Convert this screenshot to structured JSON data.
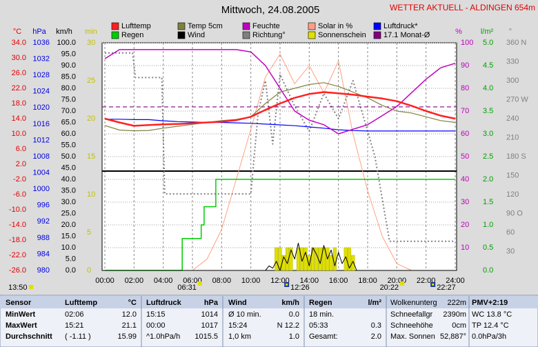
{
  "title": "Mittwoch, 24.08.2005",
  "station": "WETTER AKTUELL - ALDINGEN 654m",
  "current_time": "13:50",
  "sun": [
    "06:31",
    "20:22"
  ],
  "moon": [
    "12:26",
    "22:27"
  ],
  "chart_data": {
    "type": "line",
    "xlim": [
      0,
      24
    ],
    "xticks": [
      {
        "value": 0,
        "label": "00:00"
      },
      {
        "value": 2,
        "label": "02:00"
      },
      {
        "value": 4,
        "label": "04:00"
      },
      {
        "value": 6,
        "label": "06:00"
      },
      {
        "value": 8,
        "label": "08:00"
      },
      {
        "value": 10,
        "label": "10:00"
      },
      {
        "value": 12,
        "label": "12:00"
      },
      {
        "value": 14,
        "label": "14:00"
      },
      {
        "value": 16,
        "label": "16:00"
      },
      {
        "value": 18,
        "label": "18:00"
      },
      {
        "value": 20,
        "label": "20:00"
      },
      {
        "value": 22,
        "label": "22:00"
      },
      {
        "value": 24,
        "label": "24:00"
      }
    ],
    "grid": true,
    "axes": {
      "temp": {
        "label": "°C",
        "color": "#e00000",
        "ylim": [
          -26,
          34
        ],
        "yticks": [
          {
            "value": 34,
            "label": "34.0"
          },
          {
            "value": 30,
            "label": "30.0"
          },
          {
            "value": 26,
            "label": "26.0"
          },
          {
            "value": 22,
            "label": "22.0"
          },
          {
            "value": 18,
            "label": "18.0"
          },
          {
            "value": 14,
            "label": "14.0"
          },
          {
            "value": 10,
            "label": "10.0"
          },
          {
            "value": 6,
            "label": "6.0"
          },
          {
            "value": 2,
            "label": "2.0"
          },
          {
            "value": -2,
            "label": "-2.0"
          },
          {
            "value": -6,
            "label": "-6.0"
          },
          {
            "value": -10,
            "label": "-10.0"
          },
          {
            "value": -14,
            "label": "-14.0"
          },
          {
            "value": -18,
            "label": "-18.0"
          },
          {
            "value": -22,
            "label": "-22.0"
          },
          {
            "value": -26,
            "label": "-26.0"
          }
        ]
      },
      "pressure": {
        "label": "hPa",
        "color": "#0000e0",
        "ylim": [
          980,
          1036
        ],
        "yticks": [
          1036,
          1032,
          1028,
          1024,
          1020,
          1016,
          1012,
          1008,
          1004,
          1000,
          996,
          992,
          988,
          984,
          980
        ]
      },
      "speed": {
        "label": "km/h",
        "color": "#000000",
        "ylim": [
          0,
          100
        ],
        "yticks": [
          {
            "value": 100,
            "label": "100.0"
          },
          {
            "value": 95,
            "label": "95.0"
          },
          {
            "value": 90,
            "label": "90.0"
          },
          {
            "value": 85,
            "label": "85.0"
          },
          {
            "value": 80,
            "label": "80.0"
          },
          {
            "value": 75,
            "label": "75.0"
          },
          {
            "value": 70,
            "label": "70.0"
          },
          {
            "value": 65,
            "label": "65.0"
          },
          {
            "value": 60,
            "label": "60.0"
          },
          {
            "value": 55,
            "label": "55.0"
          },
          {
            "value": 50,
            "label": "50.0"
          },
          {
            "value": 45,
            "label": "45.0"
          },
          {
            "value": 40,
            "label": "40.0"
          },
          {
            "value": 35,
            "label": "35.0"
          },
          {
            "value": 30,
            "label": "30.0"
          },
          {
            "value": 25,
            "label": "25.0"
          },
          {
            "value": 20,
            "label": "20.0"
          },
          {
            "value": 15,
            "label": "15.0"
          },
          {
            "value": 10,
            "label": "10.0"
          },
          {
            "value": 5,
            "label": "5.0"
          },
          {
            "value": 0,
            "label": "0.0"
          }
        ]
      },
      "minutes": {
        "label": "min",
        "color": "#c0c000",
        "ylim": [
          0,
          30
        ],
        "yticks": [
          30,
          25,
          20,
          15,
          10,
          5,
          0
        ]
      },
      "percent": {
        "label": "%",
        "color": "#c000c0",
        "ylim": [
          0,
          100
        ],
        "yticks": [
          100,
          90,
          80,
          70,
          60,
          50,
          40,
          30,
          20,
          10
        ]
      },
      "rain": {
        "label": "l/m²",
        "color": "#00a000",
        "ylim": [
          0,
          5
        ],
        "yticks": [
          {
            "value": 5,
            "label": "5.0"
          },
          {
            "value": 4.5,
            "label": "4.5"
          },
          {
            "value": 4,
            "label": "4.0"
          },
          {
            "value": 3.5,
            "label": "3.5"
          },
          {
            "value": 3,
            "label": "3.0"
          },
          {
            "value": 2.5,
            "label": "2.5"
          },
          {
            "value": 2,
            "label": "2.0"
          },
          {
            "value": 1.5,
            "label": "1.5"
          },
          {
            "value": 1,
            "label": "1.0"
          },
          {
            "value": 0.5,
            "label": "0.5"
          },
          {
            "value": 0,
            "label": "0.0"
          }
        ]
      },
      "direction": {
        "label": "°",
        "color": "#808080",
        "ylim": [
          0,
          360
        ],
        "yticks": [
          {
            "value": 360,
            "label": "360 N"
          },
          330,
          300,
          {
            "value": 270,
            "label": "270 W"
          },
          240,
          210,
          {
            "value": 180,
            "label": "180 S"
          },
          150,
          120,
          {
            "value": 90,
            "label": "90 O"
          },
          60,
          30
        ]
      }
    },
    "series": [
      {
        "name": "Lufttemp",
        "color": "#ff2020",
        "axis": "temp",
        "style": "line",
        "width": 2.5,
        "x": [
          0,
          1,
          2,
          3,
          4,
          5,
          6,
          7,
          8,
          9,
          10,
          11,
          12,
          13,
          14,
          15,
          16,
          17,
          18,
          19,
          20,
          21,
          22,
          23,
          24
        ],
        "values": [
          14,
          13,
          12.1,
          12.3,
          12.5,
          12.6,
          12.8,
          13,
          13.2,
          13.6,
          14.5,
          16.3,
          18,
          19.5,
          20.5,
          21,
          20.7,
          20.3,
          19.8,
          19.3,
          18.6,
          17.4,
          16,
          14.8,
          14
        ]
      },
      {
        "name": "Temp 5cm",
        "color": "#808040",
        "axis": "temp",
        "style": "line",
        "width": 1.2,
        "x": [
          0,
          1,
          2,
          3,
          4,
          5,
          6,
          7,
          8,
          9,
          10,
          11,
          12,
          13,
          14,
          15,
          16,
          17,
          18,
          19,
          20,
          21,
          22,
          23,
          24
        ],
        "values": [
          12.2,
          11,
          10.8,
          10.9,
          11.5,
          12,
          12.5,
          13,
          13.5,
          13.8,
          14.5,
          18,
          21,
          22,
          23,
          23.5,
          22.5,
          21,
          19.5,
          17.5,
          16,
          15.5,
          14.5,
          13.5,
          13
        ]
      },
      {
        "name": "Feuchte",
        "color": "#c000c0",
        "axis": "percent",
        "style": "line",
        "width": 1.5,
        "x": [
          0,
          1,
          2,
          3,
          4,
          5,
          6,
          7,
          8,
          9,
          10,
          11,
          12,
          13,
          14,
          15,
          16,
          17,
          18,
          19,
          20,
          21,
          22,
          23,
          24
        ],
        "values": [
          93,
          97,
          97,
          97,
          97,
          97,
          97,
          97,
          97,
          97,
          96,
          90,
          80,
          70,
          66,
          64,
          60,
          62,
          64,
          68,
          72,
          78,
          84,
          89,
          91
        ]
      },
      {
        "name": "Solar in %",
        "color": "#ffa080",
        "axis": "percent",
        "style": "line",
        "width": 1,
        "x": [
          0,
          1,
          2,
          3,
          4,
          5,
          6,
          7,
          8,
          9,
          10,
          11,
          12,
          13,
          14,
          15,
          16,
          17,
          18,
          19,
          20,
          21,
          22,
          23,
          24
        ],
        "values": [
          0,
          0,
          0,
          0,
          0,
          0,
          0,
          5,
          18,
          40,
          62,
          85,
          95,
          82,
          90,
          78,
          92,
          60,
          35,
          15,
          3,
          0,
          0,
          0,
          0
        ]
      },
      {
        "name": "Luftdruck*",
        "color": "#0000ff",
        "axis": "pressure",
        "style": "line",
        "width": 1.2,
        "x": [
          0,
          1,
          2,
          3,
          4,
          5,
          6,
          7,
          8,
          9,
          10,
          11,
          12,
          13,
          14,
          15,
          16,
          17,
          18,
          19,
          20,
          21,
          22,
          23,
          24
        ],
        "values": [
          1017.2,
          1017.2,
          1017.1,
          1017.1,
          1016.8,
          1016.6,
          1016.5,
          1016.4,
          1016.4,
          1016.3,
          1016.2,
          1016,
          1015.8,
          1015.6,
          1015.3,
          1015,
          1014.6,
          1014.4,
          1014.3,
          1014.3,
          1014.3,
          1014.3,
          1014.3,
          1014.3,
          1014.3
        ]
      },
      {
        "name": "Regen",
        "color": "#00cc00",
        "axis": "rain",
        "style": "step",
        "width": 1.5,
        "x": [
          0,
          5.3,
          6.6,
          6.8,
          7.6,
          24
        ],
        "values": [
          0,
          0.7,
          1,
          1.4,
          2,
          2
        ]
      },
      {
        "name": "Wind",
        "color": "#000000",
        "axis": "speed",
        "style": "line",
        "width": 1,
        "x": [
          0,
          11,
          11.25,
          11.5,
          11.75,
          12,
          12.25,
          12.5,
          12.75,
          13,
          13.25,
          13.5,
          13.75,
          14,
          14.25,
          14.5,
          14.75,
          15,
          15.25,
          15.5,
          15.75,
          16,
          16.25,
          16.5,
          16.75,
          17,
          17.25,
          17.5,
          24
        ],
        "values": [
          0,
          0,
          2,
          1,
          4,
          0,
          6,
          3,
          9,
          5,
          12,
          4,
          8,
          2,
          10,
          7,
          3,
          11,
          5,
          9,
          2,
          8,
          3,
          6,
          1,
          4,
          0,
          0,
          0
        ]
      },
      {
        "name": "Richtung°",
        "color": "#808080",
        "axis": "direction",
        "style": "dots",
        "width": 2,
        "x": [
          0,
          1,
          1.9,
          2.1,
          3,
          3.9,
          4.1,
          5,
          6,
          7,
          8,
          9,
          10,
          10.5,
          11,
          11.5,
          12,
          13,
          14,
          15,
          16,
          17,
          18.5,
          19.5,
          20,
          21,
          22,
          23,
          24
        ],
        "values": [
          344,
          344,
          344,
          305,
          305,
          305,
          121,
          121,
          121,
          121,
          121,
          121,
          121,
          250,
          300,
          200,
          310,
          260,
          220,
          280,
          240,
          300,
          180,
          46,
          46,
          46,
          46,
          46,
          46
        ]
      },
      {
        "name": "Sonnenschein",
        "color": "#e0e000",
        "axis": "minutes",
        "style": "bar",
        "x": [
          11.75,
          12,
          12.25,
          12.5,
          12.75,
          13,
          13.25,
          13.5,
          13.75,
          14,
          14.25,
          14.5,
          14.75,
          15,
          15.25,
          15.5,
          15.75,
          16,
          16.25,
          16.5,
          16.75,
          17
        ],
        "values": [
          3,
          3,
          2,
          3,
          3,
          0,
          3,
          3,
          3,
          2,
          3,
          3,
          3,
          3,
          3,
          2,
          3,
          0,
          0,
          3,
          3,
          2
        ]
      },
      {
        "name": "17.1 Monat-Ø",
        "color": "#800080",
        "axis": "temp",
        "style": "hline",
        "value": 17.1
      }
    ]
  },
  "table": {
    "header": [
      "Sensor",
      "Lufttemp",
      "°C",
      "Luftdruck",
      "hPa",
      "Wind",
      "km/h",
      "Regen",
      "l/m²",
      "Wolkenunterg",
      "222m",
      "PMV+2:19"
    ],
    "rows": [
      [
        "MinWert",
        "02:06",
        "12.0",
        "15:15",
        "1014",
        "Ø 10 min.",
        "0.0",
        "18 min.",
        null,
        "Schneefallgr",
        "2390m",
        "WC 13.8 °C"
      ],
      [
        "MaxWert",
        "15:21",
        "21.1",
        "00:00",
        "1017",
        "15:24",
        "N 12.2",
        "05:33",
        "0.3",
        "Schneehöhe",
        "0cm",
        "TP 12.4 °C"
      ],
      [
        "Durchschnitt",
        "( -1.11 )",
        "15.99",
        "^1.0hPa/h",
        "1015.5",
        "1,0 km",
        "1.0",
        "Gesamt:",
        "2.0",
        "Max. Sonnen",
        "52,887°",
        "0.0hPa/3h"
      ]
    ]
  }
}
